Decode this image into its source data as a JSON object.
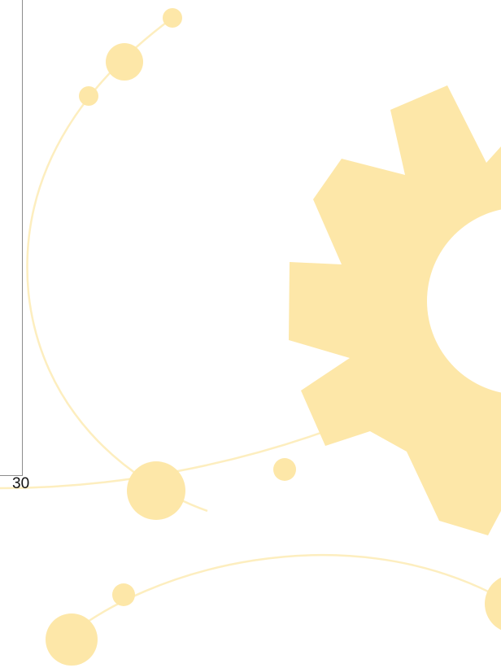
{
  "chart_fragment": {
    "x_tick_label": "30"
  },
  "colors": {
    "decor_fill": "#fde7a8",
    "decor_stroke": "#fdeebf",
    "axis": "#8c8c8c",
    "text": "#111111"
  },
  "decor": {
    "gear_icon": "gear-icon"
  }
}
